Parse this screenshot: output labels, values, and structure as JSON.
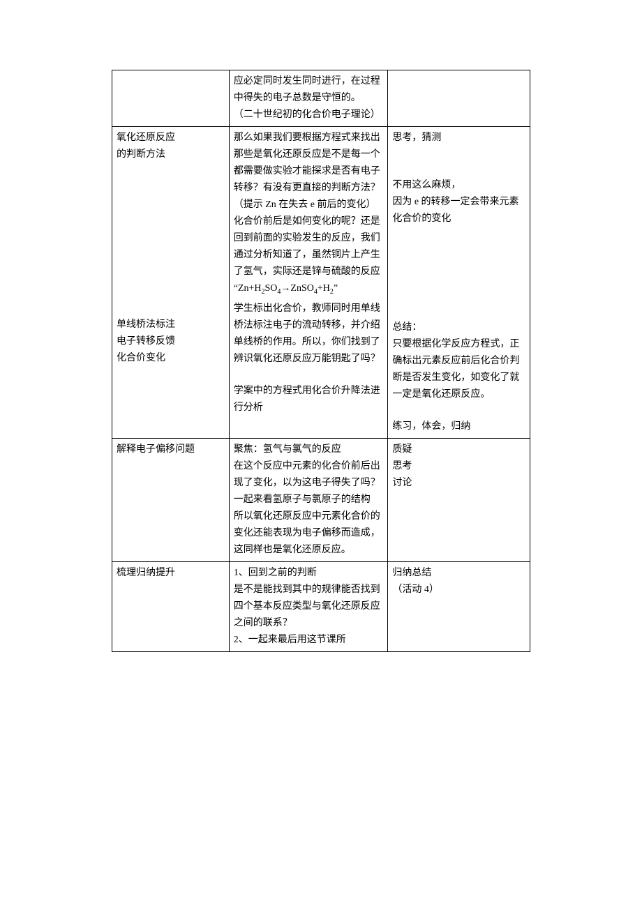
{
  "row0": {
    "c1": "",
    "c2": "应必定同时发生同时进行，在过程中得失的电子总数是守恒的。\n（二十世纪初的化合价电子理论）",
    "c3": ""
  },
  "row1": {
    "c1": "氧化还原反应\n的判断方法",
    "c2a": "那么如果我们要根据方程式来找出那些是氧化还原反应是不是每一个都需要做实验才能探求是否有电子转移？有没有更直接的判断方法？（提示 Zn 在失去 e 前后的变化）",
    "c2b": "化合价前后是如何变化的呢？还是回到前面的实验发生的反应，我们通过分析知道了，虽然铜片上产生了氢气，实际还是锌与硫酸的反应",
    "c2eq_prefix": "“Zn+H",
    "c2eq_s1": "2",
    "c2eq_mid1": "SO",
    "c2eq_s2": "4",
    "c2eq_arrow": "→ZnSO",
    "c2eq_s3": "4",
    "c2eq_mid2": "+H",
    "c2eq_s4": "2",
    "c2eq_suffix": "”",
    "c3a": "思考，猜测",
    "c3b": "不用这么麻烦，\n因为 e 的转移一定会带来元素化合价的变化",
    "r2c1": "单线桥法标注\n电子转移反馈\n化合价变化",
    "r2c2a": "学生标出化合价，教师同时用单线桥法标注电子的流动转移，并介绍单线桥的作用。所以，你们找到了辨识氧化还原反应万能钥匙了吗？",
    "r2c2b": "学案中的方程式用化合价升降法进行分析",
    "r2c3a": "总结：\n只要根据化学反应方程式，正确标出元素反应前后化合价判断是否发生变化，如变化了就一定是氧化还原反应。",
    "r2c3b": "练习，体会，归纳"
  },
  "row3": {
    "c1": "解释电子偏移问题",
    "c2": "聚焦：氢气与氯气的反应\n在这个反应中元素的化合价前后出现了变化，以为这电子得失了吗？\n一起来看氢原子与氯原子的结构\n所以氧化还原反应中元素化合价的变化还能表现为电子偏移而造成，这同样也是氧化还原反应。",
    "c3": "质疑\n思考\n讨论"
  },
  "row4": {
    "c1": "梳理归纳提升",
    "c2": "1、回到之前的判断\n是不是能找到其中的规律能否找到四个基本反应类型与氧化还原反应之间的联系？\n2、一起来最后用这节课所",
    "c3": "归纳总结\n（活动 4）"
  }
}
